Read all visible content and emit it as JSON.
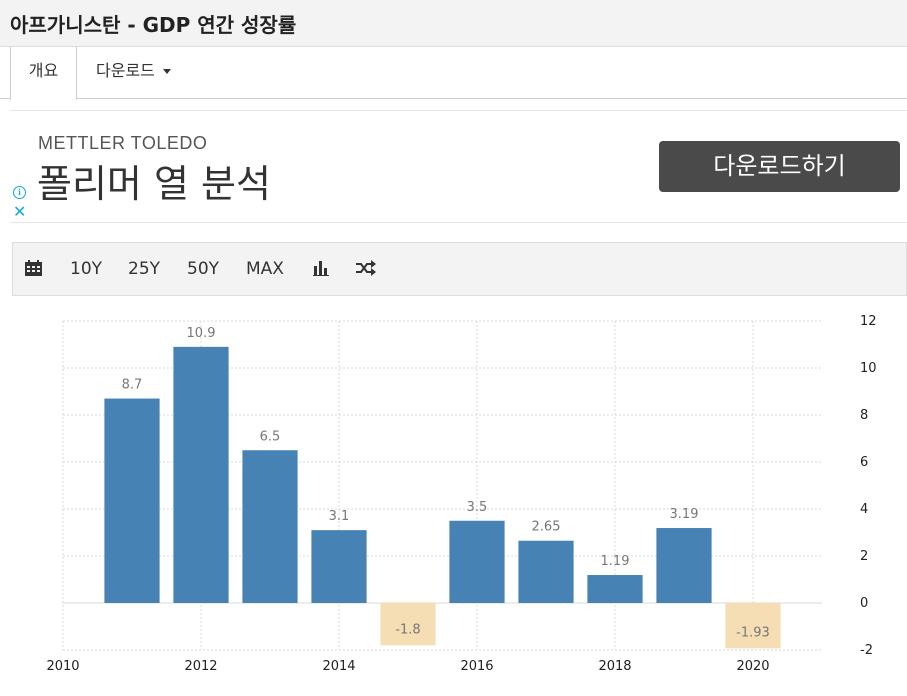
{
  "page": {
    "title": "아프가니스탄 - GDP 연간 성장률"
  },
  "tabs": {
    "overview": "개요",
    "download": "다운로드"
  },
  "ad": {
    "brand": "METTLER TOLEDO",
    "headline": "폴리머 열 분석",
    "button": "다운로드하기"
  },
  "toolbar": {
    "calendar_icon": "calendar-icon",
    "range_10y": "10Y",
    "range_25y": "25Y",
    "range_50y": "50Y",
    "range_max": "MAX",
    "chart_type_icon": "bar-chart-icon",
    "compare_icon": "shuffle-icon"
  },
  "colors": {
    "positive": "#4682b4",
    "negative": "#f5deb3",
    "grid": "#d9d9d9"
  },
  "chart_data": {
    "type": "bar",
    "x": [
      2011,
      2012,
      2013,
      2014,
      2015,
      2016,
      2017,
      2018,
      2019,
      2020
    ],
    "values": [
      8.7,
      10.9,
      6.5,
      3.1,
      -1.8,
      3.5,
      2.65,
      1.19,
      3.19,
      -1.93
    ],
    "value_labels": [
      "8.7",
      "10.9",
      "6.5",
      "3.1",
      "-1.8",
      "3.5",
      "2.65",
      "1.19",
      "3.19",
      "-1.93"
    ],
    "xlim": [
      2010,
      2021
    ],
    "ylim": [
      -2,
      12
    ],
    "x_ticks": [
      "2010",
      "2012",
      "2014",
      "2016",
      "2018",
      "2020"
    ],
    "y_ticks": [
      "12",
      "10",
      "8",
      "6",
      "4",
      "2",
      "0",
      "-2"
    ],
    "y_axis_position": "right",
    "grid": true
  }
}
